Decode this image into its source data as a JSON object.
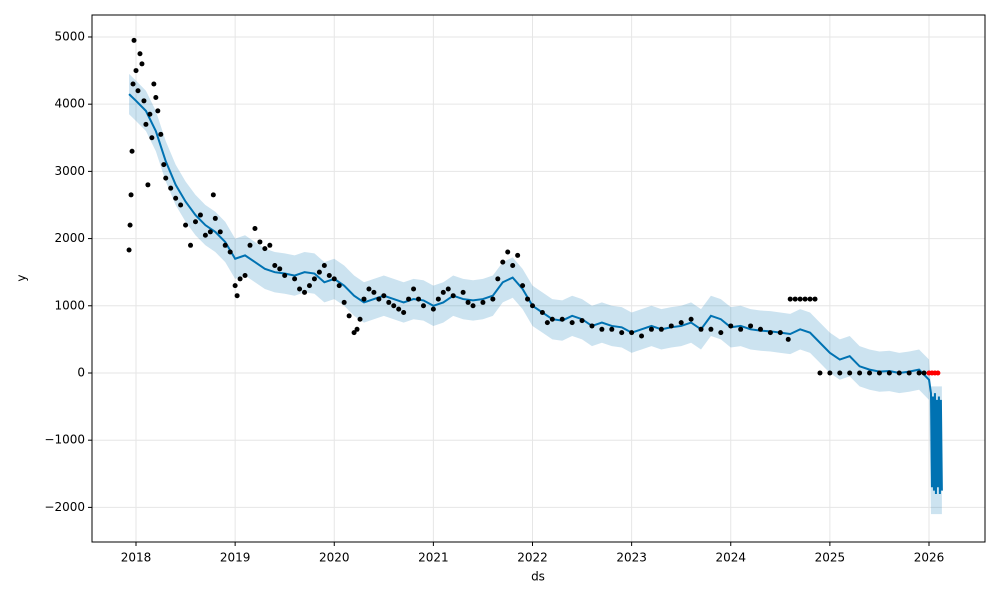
{
  "chart_data": {
    "type": "forecast",
    "x_label": "ds",
    "y_label": "y",
    "xlim": [
      2017.556,
      2026.565
    ],
    "ylim": [
      -2515,
      5327
    ],
    "xticks": [
      2018,
      2019,
      2020,
      2021,
      2022,
      2023,
      2024,
      2025,
      2026
    ],
    "yticks": [
      {
        "value": -2000,
        "label": "−2000"
      },
      {
        "value": -1000,
        "label": "−1000"
      },
      0,
      1000,
      2000,
      3000,
      4000,
      5000
    ],
    "grid": true,
    "forecast": {
      "color": "#0072b2",
      "x": [
        2017.93,
        2018.0,
        2018.1,
        2018.2,
        2018.3,
        2018.4,
        2018.5,
        2018.6,
        2018.7,
        2018.8,
        2018.9,
        2019.0,
        2019.1,
        2019.2,
        2019.3,
        2019.4,
        2019.5,
        2019.6,
        2019.7,
        2019.8,
        2019.9,
        2020.0,
        2020.1,
        2020.2,
        2020.3,
        2020.4,
        2020.5,
        2020.6,
        2020.7,
        2020.8,
        2020.9,
        2021.0,
        2021.1,
        2021.2,
        2021.3,
        2021.4,
        2021.5,
        2021.6,
        2021.7,
        2021.8,
        2021.9,
        2022.0,
        2022.1,
        2022.2,
        2022.3,
        2022.4,
        2022.5,
        2022.6,
        2022.7,
        2022.8,
        2022.9,
        2023.0,
        2023.1,
        2023.2,
        2023.3,
        2023.4,
        2023.5,
        2023.6,
        2023.7,
        2023.8,
        2023.9,
        2024.0,
        2024.1,
        2024.2,
        2024.3,
        2024.4,
        2024.5,
        2024.6,
        2024.7,
        2024.8,
        2024.9,
        2025.0,
        2025.1,
        2025.2,
        2025.3,
        2025.4,
        2025.5,
        2025.6,
        2025.7,
        2025.8,
        2025.9,
        2026.0,
        2026.02,
        2026.03,
        2026.04,
        2026.05,
        2026.06,
        2026.07,
        2026.08,
        2026.09,
        2026.1,
        2026.11,
        2026.12,
        2026.13
      ],
      "values": [
        4150,
        4050,
        3900,
        3600,
        3150,
        2800,
        2550,
        2350,
        2200,
        2100,
        1950,
        1700,
        1750,
        1650,
        1550,
        1500,
        1480,
        1450,
        1500,
        1480,
        1350,
        1400,
        1300,
        1150,
        1050,
        1100,
        1150,
        1100,
        1050,
        1100,
        1080,
        1000,
        1050,
        1150,
        1100,
        1080,
        1100,
        1150,
        1350,
        1420,
        1250,
        1000,
        900,
        800,
        780,
        850,
        800,
        700,
        750,
        700,
        680,
        600,
        650,
        700,
        650,
        680,
        700,
        750,
        650,
        850,
        800,
        680,
        700,
        650,
        630,
        620,
        600,
        580,
        650,
        600,
        450,
        300,
        200,
        250,
        100,
        50,
        20,
        30,
        0,
        20,
        50,
        -100,
        -300,
        -1700,
        -350,
        -1750,
        -300,
        -1800,
        -400,
        -1700,
        -350,
        -1800,
        -400,
        -1750
      ],
      "upper": [
        4450,
        4350,
        4200,
        3900,
        3450,
        3100,
        2850,
        2650,
        2500,
        2400,
        2250,
        2000,
        2050,
        1950,
        1850,
        1800,
        1780,
        1750,
        1800,
        1780,
        1650,
        1700,
        1600,
        1450,
        1350,
        1400,
        1450,
        1400,
        1350,
        1400,
        1380,
        1300,
        1350,
        1450,
        1400,
        1380,
        1400,
        1450,
        1650,
        1720,
        1550,
        1300,
        1200,
        1100,
        1080,
        1150,
        1100,
        1000,
        1050,
        1000,
        980,
        900,
        950,
        1000,
        950,
        980,
        1000,
        1050,
        950,
        1150,
        1100,
        980,
        1000,
        950,
        930,
        920,
        900,
        880,
        950,
        900,
        750,
        600,
        500,
        550,
        400,
        350,
        320,
        330,
        300,
        320,
        350,
        200,
        -200,
        -200,
        -200,
        -200,
        -200,
        -200,
        -200,
        -200,
        -200,
        -200,
        -200,
        -200
      ],
      "lower": [
        3850,
        3750,
        3600,
        3300,
        2850,
        2500,
        2250,
        2050,
        1900,
        1800,
        1650,
        1400,
        1450,
        1350,
        1250,
        1200,
        1180,
        1150,
        1200,
        1180,
        1050,
        1100,
        1000,
        850,
        750,
        800,
        850,
        800,
        750,
        800,
        780,
        700,
        750,
        850,
        800,
        780,
        800,
        850,
        1050,
        1120,
        950,
        700,
        600,
        500,
        480,
        550,
        500,
        400,
        450,
        400,
        380,
        300,
        350,
        400,
        350,
        380,
        400,
        450,
        350,
        550,
        500,
        380,
        400,
        350,
        330,
        320,
        300,
        280,
        350,
        300,
        150,
        0,
        -100,
        -50,
        -200,
        -250,
        -280,
        -270,
        -300,
        -280,
        -250,
        -400,
        -2100,
        -2100,
        -2100,
        -2100,
        -2100,
        -2100,
        -2100,
        -2100,
        -2100,
        -2100,
        -2100,
        -2100
      ]
    },
    "observed": {
      "color": "#000000",
      "x": [
        2017.93,
        2017.94,
        2017.95,
        2017.96,
        2017.97,
        2017.98,
        2018.0,
        2018.02,
        2018.04,
        2018.06,
        2018.08,
        2018.1,
        2018.12,
        2018.14,
        2018.16,
        2018.18,
        2018.2,
        2018.22,
        2018.25,
        2018.28,
        2018.3,
        2018.35,
        2018.4,
        2018.45,
        2018.5,
        2018.55,
        2018.6,
        2018.65,
        2018.7,
        2018.75,
        2018.78,
        2018.8,
        2018.85,
        2018.9,
        2018.95,
        2019.0,
        2019.02,
        2019.05,
        2019.1,
        2019.15,
        2019.2,
        2019.25,
        2019.3,
        2019.35,
        2019.4,
        2019.45,
        2019.5,
        2019.6,
        2019.65,
        2019.7,
        2019.75,
        2019.8,
        2019.85,
        2019.9,
        2019.95,
        2020.0,
        2020.05,
        2020.1,
        2020.15,
        2020.2,
        2020.23,
        2020.26,
        2020.3,
        2020.35,
        2020.4,
        2020.45,
        2020.5,
        2020.55,
        2020.6,
        2020.65,
        2020.7,
        2020.75,
        2020.8,
        2020.85,
        2020.9,
        2021.0,
        2021.05,
        2021.1,
        2021.15,
        2021.2,
        2021.3,
        2021.35,
        2021.4,
        2021.5,
        2021.6,
        2021.65,
        2021.7,
        2021.75,
        2021.8,
        2021.85,
        2021.9,
        2021.95,
        2022.0,
        2022.1,
        2022.15,
        2022.2,
        2022.3,
        2022.4,
        2022.5,
        2022.6,
        2022.7,
        2022.8,
        2022.9,
        2023.0,
        2023.1,
        2023.2,
        2023.3,
        2023.4,
        2023.5,
        2023.6,
        2023.7,
        2023.8,
        2023.9,
        2024.0,
        2024.1,
        2024.2,
        2024.3,
        2024.4,
        2024.5,
        2024.58,
        2024.6,
        2024.65,
        2024.7,
        2024.75,
        2024.8,
        2024.85,
        2024.9,
        2025.0,
        2025.1,
        2025.2,
        2025.3,
        2025.4,
        2025.5,
        2025.6,
        2025.7,
        2025.8,
        2025.9,
        2025.95
      ],
      "y": [
        1830,
        2200,
        2650,
        3300,
        4300,
        4950,
        4500,
        4200,
        4750,
        4600,
        4050,
        3700,
        2800,
        3850,
        3500,
        4300,
        4100,
        3900,
        3550,
        3100,
        2900,
        2750,
        2600,
        2500,
        2200,
        1900,
        2250,
        2350,
        2050,
        2100,
        2650,
        2300,
        2100,
        1900,
        1800,
        1300,
        1150,
        1400,
        1450,
        1900,
        2150,
        1950,
        1850,
        1900,
        1600,
        1550,
        1450,
        1400,
        1250,
        1200,
        1300,
        1400,
        1500,
        1600,
        1450,
        1400,
        1300,
        1050,
        850,
        600,
        650,
        800,
        1100,
        1250,
        1200,
        1100,
        1150,
        1050,
        1000,
        950,
        900,
        1100,
        1250,
        1100,
        1000,
        950,
        1100,
        1200,
        1250,
        1150,
        1200,
        1050,
        1000,
        1050,
        1100,
        1400,
        1650,
        1800,
        1600,
        1750,
        1300,
        1100,
        1000,
        900,
        750,
        800,
        800,
        750,
        780,
        700,
        650,
        650,
        600,
        600,
        550,
        650,
        650,
        700,
        750,
        800,
        650,
        650,
        600,
        700,
        650,
        700,
        650,
        600,
        600,
        500,
        1100,
        1100,
        1100,
        1100,
        1100,
        1100,
        0,
        0,
        0,
        0,
        0,
        0,
        0,
        0,
        0,
        0,
        0,
        0
      ]
    },
    "test": {
      "color": "#ff0000",
      "x": [
        2026.0,
        2026.03,
        2026.06,
        2026.09
      ],
      "y": [
        0,
        0,
        0,
        0
      ]
    }
  }
}
